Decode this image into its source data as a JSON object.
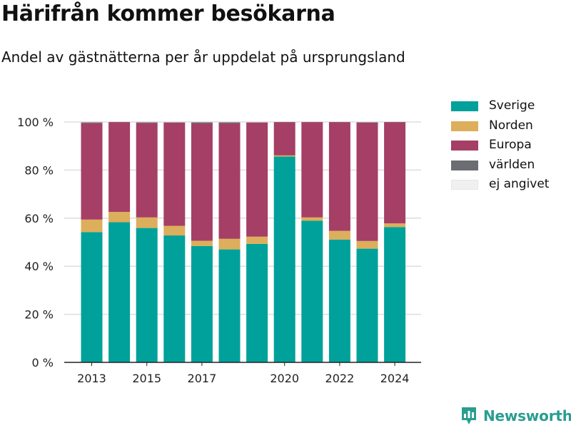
{
  "header": {
    "title": "Härifrån kommer besökarna",
    "subtitle": "Andel av gästnätterna per år uppdelat på ursprungsland"
  },
  "colors": {
    "Sverige": "#00a19a",
    "Norden": "#ddae5b",
    "Europa": "#a53f65",
    "världen": "#6b6d73",
    "ej angivet": "#f0f0f0",
    "grid": "#dddddd",
    "brand": "#2a9d8f"
  },
  "chart_data": {
    "type": "bar",
    "stacked": true,
    "x": [
      2013,
      2014,
      2015,
      2016,
      2017,
      2018,
      2019,
      2020,
      2021,
      2022,
      2023,
      2024
    ],
    "x_tick_labels": [
      "2013",
      "2015",
      "2017",
      "2020",
      "2022",
      "2024"
    ],
    "y_tick_labels": [
      "0 %",
      "20 %",
      "40 %",
      "60 %",
      "80 %",
      "100 %"
    ],
    "ylim": [
      0,
      100
    ],
    "grid": true,
    "legend_position": "top-right",
    "series": [
      {
        "name": "Sverige",
        "values": [
          54.2,
          58.3,
          55.9,
          52.8,
          48.4,
          47.0,
          49.3,
          85.6,
          58.9,
          51.1,
          47.3,
          56.3
        ]
      },
      {
        "name": "Norden",
        "values": [
          5.2,
          4.3,
          4.4,
          4.0,
          2.2,
          4.4,
          3.0,
          0.5,
          1.4,
          3.6,
          3.2,
          1.5
        ]
      },
      {
        "name": "Europa",
        "values": [
          40.1,
          37.3,
          39.3,
          43.0,
          48.8,
          48.0,
          47.5,
          13.8,
          39.6,
          45.2,
          49.2,
          42.1
        ]
      },
      {
        "name": "världen",
        "values": [
          0.4,
          0.1,
          0.3,
          0.1,
          0.5,
          0.5,
          0.1,
          0.1,
          0.1,
          0.1,
          0.2,
          0.1
        ]
      },
      {
        "name": "ej angivet",
        "values": [
          0.1,
          0.0,
          0.1,
          0.1,
          0.1,
          0.1,
          0.1,
          0.0,
          0.0,
          0.0,
          0.1,
          0.0
        ]
      }
    ]
  },
  "legend": {
    "items": [
      "Sverige",
      "Norden",
      "Europa",
      "världen",
      "ej angivet"
    ]
  },
  "footer": {
    "brand": "Newsworthy",
    "brand_icon": "bar-chart-location-icon"
  }
}
